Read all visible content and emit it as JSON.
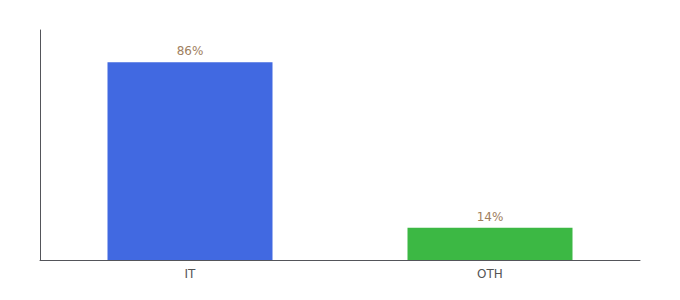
{
  "chart_data": {
    "type": "bar",
    "categories": [
      "IT",
      "OTH"
    ],
    "values": [
      86,
      14
    ],
    "value_labels": [
      "86%",
      "14%"
    ],
    "colors": [
      "#4169e1",
      "#3cb844"
    ],
    "ylim": [
      0,
      100
    ],
    "grid": false,
    "data_labels": true,
    "tick_labels": "x"
  }
}
